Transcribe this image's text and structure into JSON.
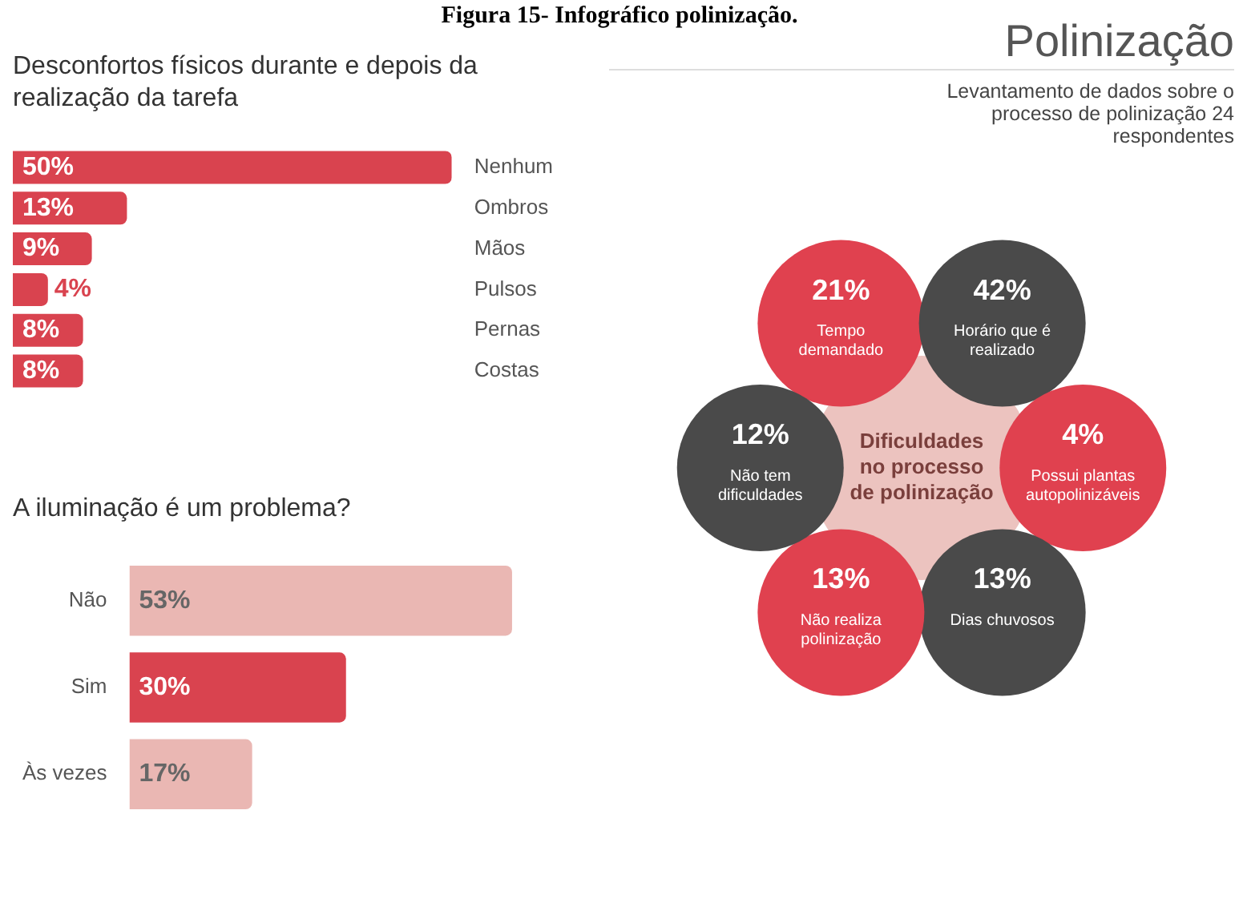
{
  "chart_data": [
    {
      "type": "bar",
      "orientation": "horizontal",
      "title": "Desconfortos físicos durante e depois da realização da tarefa",
      "annotations": [
        "Figura 15- Infográfico polinização."
      ],
      "categories": [
        "Nenhum",
        "Ombros",
        "Mãos",
        "Pulsos",
        "Pernas",
        "Costas"
      ],
      "values": [
        50,
        13,
        9,
        4,
        8,
        8
      ],
      "value_labels": [
        "50%",
        "13%",
        "9%",
        "4%",
        "8%",
        "8%"
      ],
      "color": "#d9434f",
      "tick_labels": "y"
    },
    {
      "type": "bar",
      "orientation": "horizontal",
      "title": "A iluminação é um problema?",
      "categories": [
        "Não",
        "Sim",
        "Às vezes"
      ],
      "values": [
        53,
        30,
        17
      ],
      "value_labels": [
        "53%",
        "30%",
        "17%"
      ],
      "colors": [
        "#eab7b3",
        "#d9434f",
        "#eab7b3"
      ],
      "tick_labels": "y"
    },
    {
      "type": "other",
      "title": "Polinização",
      "subtitle": "Levantamento de dados sobre o processo de polinização 24 respondentes",
      "annotations": [
        "Dificuldades no processo de polinização"
      ],
      "categories": [
        "Tempo demandado",
        "Horário que é realizado",
        "Possui plantas autopolinizáveis",
        "Dias chuvosos",
        "Não realiza polinização",
        "Não tem dificuldades"
      ],
      "values": [
        21,
        42,
        4,
        13,
        13,
        12
      ],
      "value_labels": [
        "21%",
        "42%",
        "4%",
        "13%",
        "13%",
        "12%"
      ],
      "colors": [
        "#e0414f",
        "#4a4a4a",
        "#e0414f",
        "#4a4a4a",
        "#e0414f",
        "#4a4a4a"
      ]
    }
  ]
}
